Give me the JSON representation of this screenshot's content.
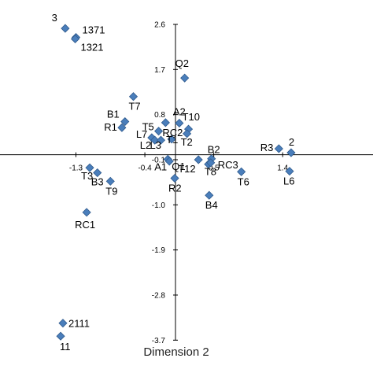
{
  "chart_data": {
    "type": "scatter",
    "xlabel": "",
    "ylabel": "Dimension 2",
    "xlim": [
      -1.55,
      1.55
    ],
    "ylim": [
      -3.7,
      2.6
    ],
    "x_ticks": [
      -1.3,
      -0.4,
      0.5,
      1.4
    ],
    "x_tick_labels": [
      "-1.3",
      "-0.4",
      "0.5",
      "1.4"
    ],
    "y_ticks": [
      2.6,
      1.7,
      0.8,
      -0.1,
      -1.0,
      -1.9,
      -2.8,
      -3.7
    ],
    "y_tick_labels": [
      "2.6",
      "1.7",
      "0.8",
      "-0.1",
      "-1.0",
      "-1.9",
      "-2.8",
      "-3.7"
    ],
    "grid": false,
    "marker": "diamond",
    "marker_color": "#4a7ebb",
    "points": [
      {
        "label": "1371",
        "x": -1.3,
        "y": 2.34
      },
      {
        "label": "1321",
        "x": -1.31,
        "y": 2.31
      },
      {
        "label": "3",
        "x": -1.44,
        "y": 2.52
      },
      {
        "label": "T7",
        "x": -0.55,
        "y": 1.16
      },
      {
        "label": "B1",
        "x": -0.66,
        "y": 0.66
      },
      {
        "label": "R1",
        "x": -0.7,
        "y": 0.54
      },
      {
        "label": "Q2",
        "x": 0.12,
        "y": 1.53
      },
      {
        "label": "A2",
        "x": 0.05,
        "y": 0.63
      },
      {
        "label": "T10",
        "x": 0.17,
        "y": 0.51
      },
      {
        "label": "RC2",
        "x": -0.13,
        "y": 0.64
      },
      {
        "label": "T5",
        "x": -0.22,
        "y": 0.47
      },
      {
        "label": "T2",
        "x": 0.15,
        "y": 0.42
      },
      {
        "label": "L7",
        "x": -0.31,
        "y": 0.34
      },
      {
        "label": "L2",
        "x": -0.27,
        "y": 0.29
      },
      {
        "label": "L3",
        "x": -0.19,
        "y": 0.29
      },
      {
        "label": "T1",
        "x": -0.05,
        "y": 0.31
      },
      {
        "label": "A1",
        "x": -0.1,
        "y": -0.09
      },
      {
        "label": "Q1",
        "x": -0.08,
        "y": -0.13
      },
      {
        "label": "R2",
        "x": -0.01,
        "y": -0.47
      },
      {
        "label": "T12",
        "x": 0.3,
        "y": -0.1
      },
      {
        "label": "B2",
        "x": 0.47,
        "y": -0.08
      },
      {
        "label": "T8",
        "x": 0.43,
        "y": -0.19
      },
      {
        "label": "RC3",
        "x": 0.46,
        "y": -0.16
      },
      {
        "label": "B4",
        "x": 0.44,
        "y": -0.81
      },
      {
        "label": "T6",
        "x": 0.86,
        "y": -0.34
      },
      {
        "label": "R3",
        "x": 1.35,
        "y": 0.12
      },
      {
        "label": "2",
        "x": 1.51,
        "y": 0.04
      },
      {
        "label": "L6",
        "x": 1.49,
        "y": -0.33
      },
      {
        "label": "T3",
        "x": -1.12,
        "y": -0.26
      },
      {
        "label": "B3",
        "x": -1.02,
        "y": -0.36
      },
      {
        "label": "T9",
        "x": -0.85,
        "y": -0.53
      },
      {
        "label": "RC1",
        "x": -1.16,
        "y": -1.15
      },
      {
        "label": "2111",
        "x": -1.47,
        "y": -3.36
      },
      {
        "label": "11",
        "x": -1.5,
        "y": -3.62
      }
    ]
  }
}
